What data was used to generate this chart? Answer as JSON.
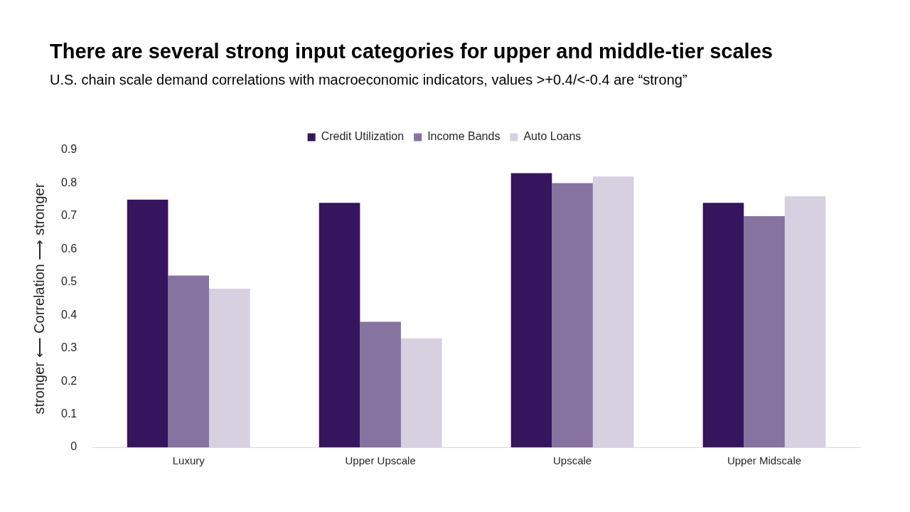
{
  "chart_data": {
    "type": "bar",
    "title": "There are several strong input categories for upper and middle-tier scales",
    "subtitle": "U.S. chain scale demand correlations with macroeconomic indicators, values >+0.4/<-0.4 are “strong”",
    "ylabel": "stronger ⟵ Correlation ⟶ stronger",
    "categories": [
      "Luxury",
      "Upper Upscale",
      "Upscale",
      "Upper Midscale"
    ],
    "series": [
      {
        "name": "Credit Utilization",
        "color": "#35155d",
        "values": [
          0.75,
          0.74,
          0.83,
          0.74
        ]
      },
      {
        "name": "Income Bands",
        "color": "#8773a0",
        "values": [
          0.52,
          0.38,
          0.8,
          0.7
        ]
      },
      {
        "name": "Auto Loans",
        "color": "#d6d0e0",
        "values": [
          0.48,
          0.33,
          0.82,
          0.76
        ]
      }
    ],
    "ylim": [
      0,
      0.9
    ],
    "yticks": [
      0,
      0.1,
      0.2,
      0.3,
      0.4,
      0.5,
      0.6,
      0.7,
      0.8,
      0.9
    ],
    "grid": false,
    "legend": "top"
  }
}
